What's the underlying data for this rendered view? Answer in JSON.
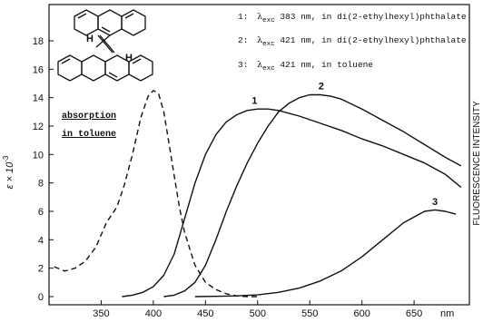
{
  "chart_data": {
    "type": "line",
    "x_unit_label": "nm",
    "ylabel_left": "ε × 10",
    "ylabel_left_exp": "-3",
    "ylabel_right": "FLUORESCENCE INTENSITY",
    "xlim": [
      305,
      700
    ],
    "ylim": [
      0,
      19
    ],
    "x_ticks": [
      350,
      400,
      450,
      500,
      550,
      600,
      650
    ],
    "y_ticks": [
      0,
      2,
      4,
      6,
      8,
      10,
      12,
      14,
      16,
      18
    ],
    "grid": false,
    "molecule_atom_label": "H",
    "annotation": [
      "absorption",
      "in toluene"
    ],
    "legend": [
      {
        "num": "1:",
        "sym": "λ",
        "sub": "exc",
        "rest": " 383 nm, in di(2-ethylhexyl)phthalate"
      },
      {
        "num": "2:",
        "sym": "λ",
        "sub": "exc",
        "rest": " 421 nm, in di(2-ethylhexyl)phthalate"
      },
      {
        "num": "3:",
        "sym": "λ",
        "sub": "exc",
        "rest": " 421 nm, in toluene"
      }
    ],
    "series": [
      {
        "label": "absorption",
        "style": "dashed",
        "x": [
          305,
          315,
          325,
          335,
          345,
          355,
          365,
          372,
          380,
          388,
          395,
          400,
          405,
          410,
          415,
          420,
          425,
          430,
          440,
          450,
          460,
          470,
          480,
          490,
          500
        ],
        "y": [
          2.1,
          1.8,
          2.0,
          2.5,
          3.5,
          5.2,
          6.3,
          7.8,
          10.0,
          12.6,
          14.1,
          14.5,
          14.3,
          13.0,
          10.8,
          8.5,
          6.3,
          4.5,
          2.2,
          1.0,
          0.5,
          0.2,
          0.05,
          0.0,
          0.0
        ]
      },
      {
        "label": "1",
        "style": "solid",
        "x": [
          370,
          380,
          390,
          400,
          410,
          420,
          430,
          440,
          450,
          460,
          470,
          480,
          490,
          500,
          510,
          520,
          540,
          560,
          580,
          600,
          620,
          640,
          660,
          680,
          695
        ],
        "y": [
          0.0,
          0.1,
          0.3,
          0.7,
          1.5,
          3.0,
          5.5,
          8.0,
          10.0,
          11.4,
          12.3,
          12.8,
          13.1,
          13.2,
          13.2,
          13.1,
          12.7,
          12.2,
          11.7,
          11.1,
          10.6,
          10.0,
          9.4,
          8.6,
          7.7
        ]
      },
      {
        "label": "2",
        "style": "solid",
        "x": [
          410,
          420,
          430,
          440,
          450,
          460,
          470,
          480,
          490,
          500,
          510,
          520,
          530,
          540,
          550,
          560,
          570,
          580,
          600,
          620,
          640,
          660,
          680,
          695
        ],
        "y": [
          0.0,
          0.1,
          0.4,
          1.0,
          2.2,
          4.0,
          6.0,
          7.8,
          9.4,
          10.8,
          12.0,
          13.0,
          13.6,
          14.0,
          14.2,
          14.2,
          14.1,
          13.9,
          13.2,
          12.4,
          11.6,
          10.7,
          9.8,
          9.2
        ]
      },
      {
        "label": "3",
        "style": "solid",
        "x": [
          440,
          460,
          480,
          500,
          520,
          540,
          560,
          580,
          600,
          620,
          640,
          660,
          670,
          680,
          690
        ],
        "y": [
          0.0,
          0.02,
          0.05,
          0.12,
          0.3,
          0.6,
          1.1,
          1.8,
          2.8,
          4.0,
          5.2,
          6.0,
          6.1,
          6.0,
          5.8
        ]
      }
    ],
    "curve_labels": [
      {
        "text": "1",
        "x": 497,
        "y": 13.55
      },
      {
        "text": "2",
        "x": 561,
        "y": 14.6
      },
      {
        "text": "3",
        "x": 670,
        "y": 6.45
      }
    ]
  }
}
